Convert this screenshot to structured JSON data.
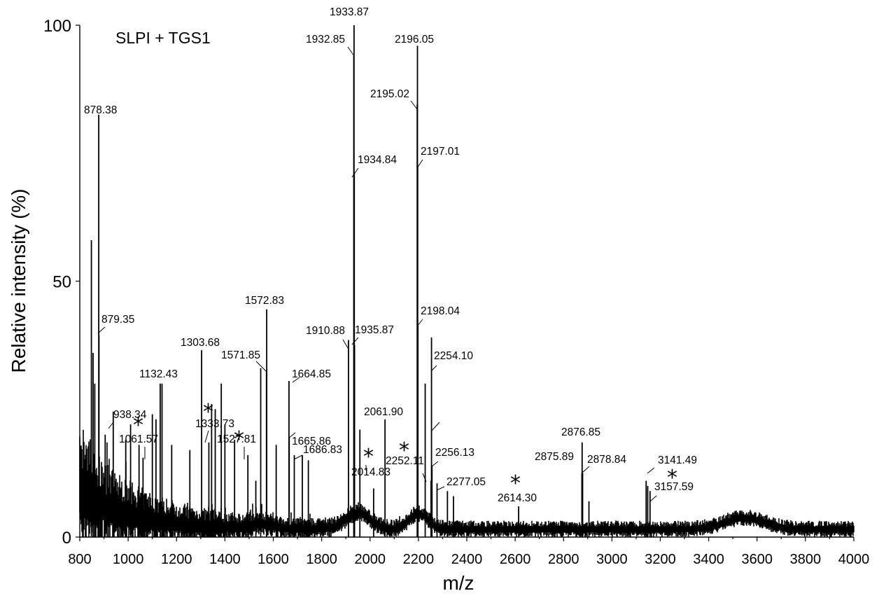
{
  "chart_data": {
    "type": "line",
    "title": "SLPI + TGS1",
    "xlabel": "m/z",
    "ylabel": "Relative intensity (%)",
    "xlim": [
      800,
      4000
    ],
    "ylim": [
      0,
      100
    ],
    "x_ticks": [
      800,
      1000,
      1200,
      1400,
      1600,
      1800,
      2000,
      2200,
      2400,
      2600,
      2800,
      3000,
      3200,
      3400,
      3600,
      3800,
      4000
    ],
    "y_ticks": [
      0,
      50,
      100
    ],
    "grid": false,
    "peaks": [
      {
        "x": 878.38,
        "y": 82.5
      },
      {
        "x": 879.35,
        "y": 39.5
      },
      {
        "x": 938.34,
        "y": 24.5
      },
      {
        "x": 1061.57,
        "y": 15.5
      },
      {
        "x": 1132.43,
        "y": 30.0
      },
      {
        "x": 1303.68,
        "y": 36.5
      },
      {
        "x": 1333.73,
        "y": 18.5
      },
      {
        "x": 1527.81,
        "y": 11.0
      },
      {
        "x": 1571.85,
        "y": 32.5
      },
      {
        "x": 1572.83,
        "y": 44.5
      },
      {
        "x": 1664.85,
        "y": 30.5
      },
      {
        "x": 1665.86,
        "y": 19.5
      },
      {
        "x": 1686.83,
        "y": 16.0
      },
      {
        "x": 1910.88,
        "y": 38.5
      },
      {
        "x": 1932.85,
        "y": 94.0
      },
      {
        "x": 1933.87,
        "y": 100.0
      },
      {
        "x": 1934.84,
        "y": 71.0
      },
      {
        "x": 1935.87,
        "y": 37.5
      },
      {
        "x": 2014.83,
        "y": 9.5
      },
      {
        "x": 2061.9,
        "y": 23.0
      },
      {
        "x": 2195.02,
        "y": 84.5
      },
      {
        "x": 2196.05,
        "y": 96.0
      },
      {
        "x": 2197.01,
        "y": 72.5
      },
      {
        "x": 2198.04,
        "y": 41.5
      },
      {
        "x": 2252.11,
        "y": 11.0
      },
      {
        "x": 2254.1,
        "y": 39.0
      },
      {
        "x": 2256.13,
        "y": 14.0
      },
      {
        "x": 2277.05,
        "y": 10.5
      },
      {
        "x": 2614.3,
        "y": 6.0
      },
      {
        "x": 2875.89,
        "y": 12.5
      },
      {
        "x": 2876.85,
        "y": 18.5
      },
      {
        "x": 2878.84,
        "y": 12.5
      },
      {
        "x": 3141.49,
        "y": 11.0
      },
      {
        "x": 3157.59,
        "y": 9.0
      }
    ],
    "annotations": [
      {
        "text": "878.38",
        "x": 878.38
      },
      {
        "text": "879.35",
        "x": 879.35
      },
      {
        "text": "938.34",
        "x": 938.34
      },
      {
        "text": "1061.57",
        "x": 1061.57
      },
      {
        "text": "1132.43",
        "x": 1132.43
      },
      {
        "text": "1303.68",
        "x": 1303.68
      },
      {
        "text": "1333.73",
        "x": 1333.73
      },
      {
        "text": "1527.81",
        "x": 1527.81
      },
      {
        "text": "1571.85",
        "x": 1571.85
      },
      {
        "text": "1572.83",
        "x": 1572.83
      },
      {
        "text": "1664.85",
        "x": 1664.85
      },
      {
        "text": "1665.86",
        "x": 1665.86
      },
      {
        "text": "1686.83",
        "x": 1686.83
      },
      {
        "text": "1910.88",
        "x": 1910.88
      },
      {
        "text": "1932.85",
        "x": 1932.85
      },
      {
        "text": "1933.87",
        "x": 1933.87
      },
      {
        "text": "1934.84",
        "x": 1934.84
      },
      {
        "text": "1935.87",
        "x": 1935.87
      },
      {
        "text": "2014.83",
        "x": 2014.83
      },
      {
        "text": "2061.90",
        "x": 2061.9
      },
      {
        "text": "2195.02",
        "x": 2195.02
      },
      {
        "text": "2196.05",
        "x": 2196.05
      },
      {
        "text": "2197.01",
        "x": 2197.01
      },
      {
        "text": "2198.04",
        "x": 2198.04
      },
      {
        "text": "2252.11",
        "x": 2252.11
      },
      {
        "text": "2254.10",
        "x": 2254.1
      },
      {
        "text": "2256.13",
        "x": 2256.13
      },
      {
        "text": "2277.05",
        "x": 2277.05
      },
      {
        "text": "2614.30",
        "x": 2614.3
      },
      {
        "text": "2875.89",
        "x": 2875.89
      },
      {
        "text": "2876.85",
        "x": 2876.85
      },
      {
        "text": "2878.84",
        "x": 2878.84
      },
      {
        "text": "3141.49",
        "x": 3141.49
      },
      {
        "text": "3157.59",
        "x": 3157.59
      }
    ],
    "asterisks": [
      {
        "text": "*",
        "x": 1061.57
      },
      {
        "text": "*",
        "x": 1333.73
      },
      {
        "text": "*",
        "x": 1527.81
      },
      {
        "text": "*",
        "x": 2014.83
      },
      {
        "text": "*",
        "x": 2252.11
      },
      {
        "text": "*",
        "x": 2614.3
      },
      {
        "text": "*",
        "x": 3157.59
      }
    ]
  }
}
